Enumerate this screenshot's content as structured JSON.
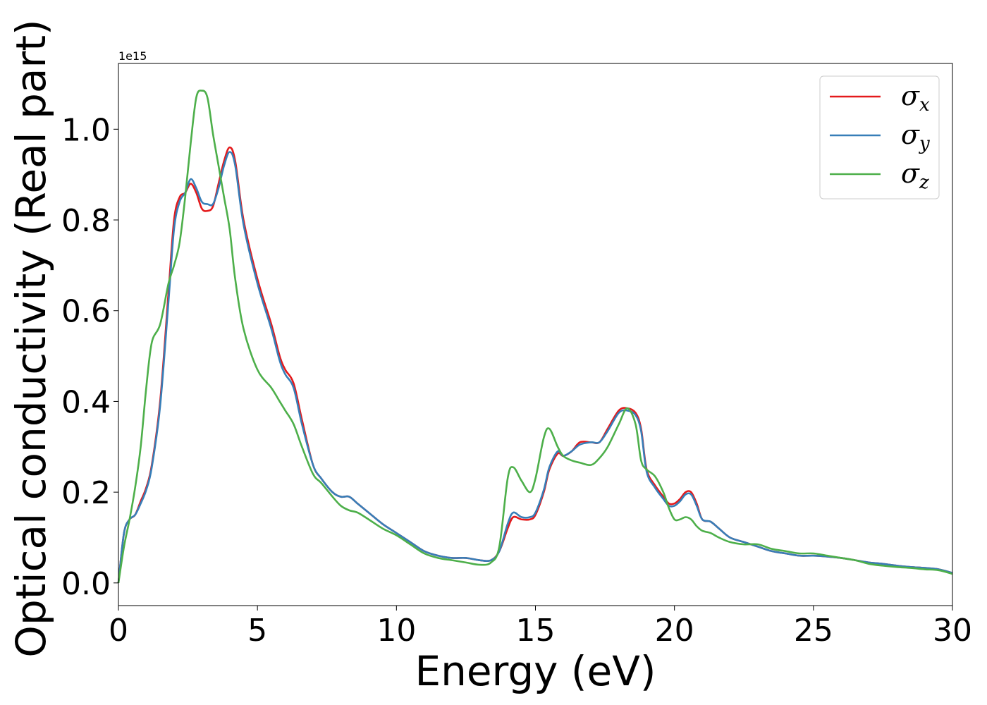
{
  "chart_data": {
    "type": "line",
    "title": "",
    "xlabel": "Energy (eV)",
    "ylabel": "Optical conductivity (Real part)",
    "y_offset_label": "1e15",
    "xlim": [
      0,
      30
    ],
    "ylim": [
      -0.05,
      1.145
    ],
    "xticks": [
      0,
      5,
      10,
      15,
      20,
      25,
      30
    ],
    "xtick_labels": [
      "0",
      "5",
      "10",
      "15",
      "20",
      "25",
      "30"
    ],
    "yticks": [
      0.0,
      0.2,
      0.4,
      0.6,
      0.8,
      1.0
    ],
    "ytick_labels": [
      "0.0",
      "0.2",
      "0.4",
      "0.6",
      "0.8",
      "1.0"
    ],
    "grid": false,
    "legend_position": "top-right",
    "series": [
      {
        "name": "σ",
        "subscript": "x",
        "color": "#e41a1c",
        "x": [
          0,
          0.2,
          0.4,
          0.6,
          0.8,
          1.0,
          1.2,
          1.5,
          1.8,
          2.0,
          2.2,
          2.4,
          2.6,
          2.8,
          3.0,
          3.2,
          3.4,
          3.6,
          3.8,
          4.0,
          4.2,
          4.5,
          5.0,
          5.5,
          5.8,
          6.0,
          6.3,
          6.6,
          7.0,
          7.3,
          7.7,
          8.0,
          8.3,
          8.6,
          9.0,
          9.5,
          10.0,
          10.5,
          11.0,
          11.5,
          12.0,
          12.5,
          13.0,
          13.4,
          13.7,
          14.0,
          14.2,
          14.5,
          14.8,
          15.0,
          15.3,
          15.5,
          15.8,
          16.0,
          16.3,
          16.6,
          17.0,
          17.3,
          17.6,
          18.0,
          18.3,
          18.6,
          18.8,
          19.0,
          19.3,
          19.6,
          19.8,
          20.0,
          20.2,
          20.4,
          20.6,
          20.8,
          21.0,
          21.3,
          21.6,
          22.0,
          22.5,
          23.0,
          23.5,
          24.0,
          24.5,
          25.0,
          25.5,
          26.0,
          26.5,
          27.0,
          27.5,
          28.0,
          28.5,
          29.0,
          29.5,
          30.0
        ],
        "y": [
          0.0,
          0.11,
          0.14,
          0.15,
          0.18,
          0.21,
          0.26,
          0.4,
          0.64,
          0.8,
          0.85,
          0.86,
          0.88,
          0.86,
          0.825,
          0.82,
          0.83,
          0.88,
          0.93,
          0.96,
          0.93,
          0.8,
          0.67,
          0.57,
          0.5,
          0.47,
          0.44,
          0.36,
          0.26,
          0.23,
          0.2,
          0.19,
          0.19,
          0.175,
          0.155,
          0.13,
          0.11,
          0.09,
          0.07,
          0.06,
          0.055,
          0.055,
          0.05,
          0.05,
          0.07,
          0.12,
          0.145,
          0.14,
          0.14,
          0.15,
          0.2,
          0.25,
          0.285,
          0.28,
          0.29,
          0.31,
          0.31,
          0.31,
          0.34,
          0.38,
          0.385,
          0.375,
          0.34,
          0.25,
          0.215,
          0.19,
          0.175,
          0.175,
          0.185,
          0.2,
          0.2,
          0.175,
          0.14,
          0.135,
          0.12,
          0.1,
          0.09,
          0.08,
          0.07,
          0.065,
          0.06,
          0.06,
          0.058,
          0.055,
          0.05,
          0.045,
          0.042,
          0.038,
          0.035,
          0.033,
          0.03,
          0.022
        ]
      },
      {
        "name": "σ",
        "subscript": "y",
        "color": "#377eb8",
        "x": [
          0,
          0.2,
          0.4,
          0.6,
          0.8,
          1.0,
          1.2,
          1.5,
          1.8,
          2.0,
          2.2,
          2.4,
          2.6,
          2.8,
          3.0,
          3.2,
          3.4,
          3.6,
          3.8,
          4.0,
          4.2,
          4.5,
          5.0,
          5.5,
          5.8,
          6.0,
          6.3,
          6.6,
          7.0,
          7.3,
          7.7,
          8.0,
          8.3,
          8.6,
          9.0,
          9.5,
          10.0,
          10.5,
          11.0,
          11.5,
          12.0,
          12.5,
          13.0,
          13.4,
          13.7,
          14.0,
          14.2,
          14.5,
          14.8,
          15.0,
          15.3,
          15.5,
          15.8,
          16.0,
          16.3,
          16.6,
          17.0,
          17.3,
          17.6,
          18.0,
          18.3,
          18.6,
          18.8,
          19.0,
          19.3,
          19.6,
          19.8,
          20.0,
          20.2,
          20.4,
          20.6,
          20.8,
          21.0,
          21.3,
          21.6,
          22.0,
          22.5,
          23.0,
          23.5,
          24.0,
          24.5,
          25.0,
          25.5,
          26.0,
          26.5,
          27.0,
          27.5,
          28.0,
          28.5,
          29.0,
          29.5,
          30.0
        ],
        "y": [
          0.0,
          0.11,
          0.14,
          0.15,
          0.175,
          0.205,
          0.255,
          0.39,
          0.62,
          0.78,
          0.84,
          0.86,
          0.89,
          0.87,
          0.84,
          0.835,
          0.835,
          0.87,
          0.92,
          0.95,
          0.92,
          0.79,
          0.66,
          0.56,
          0.49,
          0.46,
          0.43,
          0.35,
          0.26,
          0.23,
          0.2,
          0.19,
          0.19,
          0.175,
          0.155,
          0.13,
          0.11,
          0.09,
          0.07,
          0.06,
          0.055,
          0.055,
          0.05,
          0.05,
          0.07,
          0.13,
          0.155,
          0.145,
          0.145,
          0.155,
          0.205,
          0.255,
          0.29,
          0.28,
          0.29,
          0.305,
          0.31,
          0.31,
          0.335,
          0.375,
          0.38,
          0.37,
          0.335,
          0.245,
          0.21,
          0.185,
          0.17,
          0.17,
          0.18,
          0.195,
          0.195,
          0.17,
          0.14,
          0.135,
          0.12,
          0.1,
          0.09,
          0.08,
          0.07,
          0.065,
          0.06,
          0.06,
          0.058,
          0.055,
          0.05,
          0.045,
          0.042,
          0.038,
          0.035,
          0.033,
          0.03,
          0.022
        ]
      },
      {
        "name": "σ",
        "subscript": "z",
        "color": "#4daf4a",
        "x": [
          0,
          0.2,
          0.4,
          0.6,
          0.8,
          1.0,
          1.2,
          1.5,
          1.8,
          2.0,
          2.2,
          2.4,
          2.6,
          2.8,
          3.0,
          3.2,
          3.4,
          3.6,
          3.8,
          4.0,
          4.2,
          4.5,
          5.0,
          5.5,
          5.8,
          6.0,
          6.3,
          6.6,
          7.0,
          7.3,
          7.7,
          8.0,
          8.3,
          8.6,
          9.0,
          9.5,
          10.0,
          10.5,
          11.0,
          11.5,
          12.0,
          12.5,
          13.0,
          13.4,
          13.7,
          14.0,
          14.2,
          14.5,
          14.8,
          15.0,
          15.3,
          15.5,
          15.8,
          16.0,
          16.3,
          16.6,
          17.0,
          17.3,
          17.6,
          18.0,
          18.3,
          18.6,
          18.8,
          19.0,
          19.3,
          19.6,
          19.8,
          20.0,
          20.2,
          20.4,
          20.6,
          20.8,
          21.0,
          21.3,
          21.6,
          22.0,
          22.5,
          23.0,
          23.5,
          24.0,
          24.5,
          25.0,
          25.5,
          26.0,
          26.5,
          27.0,
          27.5,
          28.0,
          28.5,
          29.0,
          29.5,
          30.0
        ],
        "y": [
          0.0,
          0.08,
          0.14,
          0.21,
          0.3,
          0.43,
          0.53,
          0.57,
          0.66,
          0.7,
          0.75,
          0.85,
          0.97,
          1.07,
          1.085,
          1.07,
          0.99,
          0.92,
          0.85,
          0.78,
          0.67,
          0.56,
          0.47,
          0.43,
          0.4,
          0.38,
          0.35,
          0.3,
          0.24,
          0.22,
          0.19,
          0.17,
          0.16,
          0.155,
          0.14,
          0.12,
          0.105,
          0.085,
          0.065,
          0.055,
          0.05,
          0.045,
          0.04,
          0.045,
          0.08,
          0.23,
          0.255,
          0.225,
          0.2,
          0.23,
          0.32,
          0.34,
          0.3,
          0.28,
          0.27,
          0.265,
          0.26,
          0.275,
          0.3,
          0.35,
          0.385,
          0.35,
          0.27,
          0.25,
          0.235,
          0.2,
          0.165,
          0.14,
          0.14,
          0.145,
          0.14,
          0.125,
          0.115,
          0.11,
          0.1,
          0.09,
          0.085,
          0.085,
          0.075,
          0.07,
          0.065,
          0.065,
          0.06,
          0.055,
          0.05,
          0.042,
          0.038,
          0.035,
          0.033,
          0.03,
          0.028,
          0.02
        ]
      }
    ]
  }
}
